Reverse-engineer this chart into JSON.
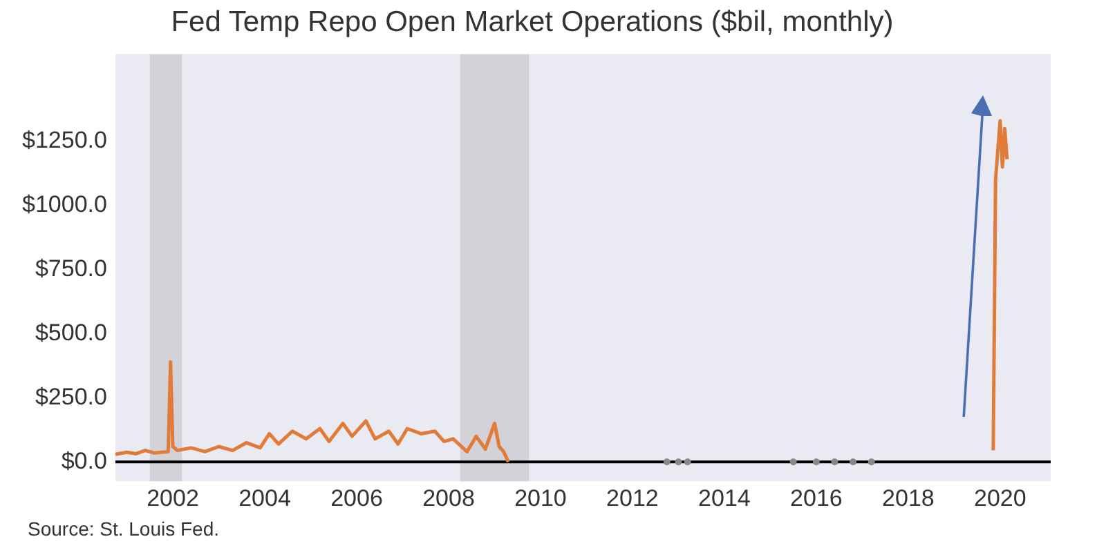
{
  "chart_data": {
    "type": "line",
    "title": "Fed Temp Repo Open Market Operations ($bil, monthly)",
    "annotations": [
      "Source: St. Louis Fed."
    ],
    "xlim": [
      2000.75,
      2021.1
    ],
    "xticks": [
      2002,
      2004,
      2006,
      2008,
      2010,
      2012,
      2014,
      2016,
      2018,
      2020
    ],
    "ylim": [
      -75,
      1590
    ],
    "yticks": [
      {
        "value": 0,
        "label": "$0.0"
      },
      {
        "value": 250,
        "label": "$250.0"
      },
      {
        "value": 500,
        "label": "$500.0"
      },
      {
        "value": 750,
        "label": "$750.0"
      },
      {
        "value": 1000,
        "label": "$1000.0"
      },
      {
        "value": 1250,
        "label": "$1250.0"
      }
    ],
    "grid": false,
    "legend": false,
    "marker": "none",
    "line_style": "solid",
    "ref_lines": [
      {
        "axis": "y",
        "value": 0,
        "color": "#000000"
      }
    ],
    "bands": [
      {
        "axis": "x",
        "from": 2001.5,
        "to": 2002.2,
        "color": "#d2d2d8"
      },
      {
        "axis": "x",
        "from": 2008.25,
        "to": 2009.75,
        "color": "#d2d2d8"
      }
    ],
    "series": [
      {
        "color": "#e07b39",
        "x": [
          2000.75,
          2001.0,
          2001.2,
          2001.4,
          2001.6,
          2001.9,
          2001.95,
          2002.0,
          2002.1,
          2002.4,
          2002.7,
          2003.0,
          2003.3,
          2003.6,
          2003.9,
          2004.1,
          2004.3,
          2004.6,
          2004.9,
          2005.2,
          2005.4,
          2005.7,
          2005.9,
          2006.2,
          2006.4,
          2006.7,
          2006.9,
          2007.1,
          2007.4,
          2007.7,
          2007.9,
          2008.1,
          2008.4,
          2008.6,
          2008.8,
          2009.0,
          2009.1,
          2009.2,
          2009.3,
          2009.4,
          2019.85,
          2019.9,
          2020.0,
          2020.05,
          2020.1,
          2020.15
        ],
        "values": [
          30,
          38,
          32,
          45,
          35,
          40,
          390,
          60,
          45,
          55,
          40,
          60,
          45,
          75,
          55,
          110,
          70,
          120,
          90,
          130,
          80,
          150,
          100,
          160,
          90,
          120,
          70,
          130,
          110,
          120,
          80,
          90,
          40,
          100,
          50,
          150,
          60,
          40,
          0,
          null,
          45,
          1100,
          1330,
          1150,
          1300,
          1180
        ]
      },
      {
        "type": "scatter",
        "color": "#888888",
        "marker": "circle",
        "x": [
          2012.75,
          2013.0,
          2013.2,
          2015.5,
          2016.0,
          2016.4,
          2016.8,
          2017.2
        ],
        "values": [
          0,
          0,
          0,
          0,
          0,
          0,
          0,
          0
        ]
      }
    ]
  }
}
